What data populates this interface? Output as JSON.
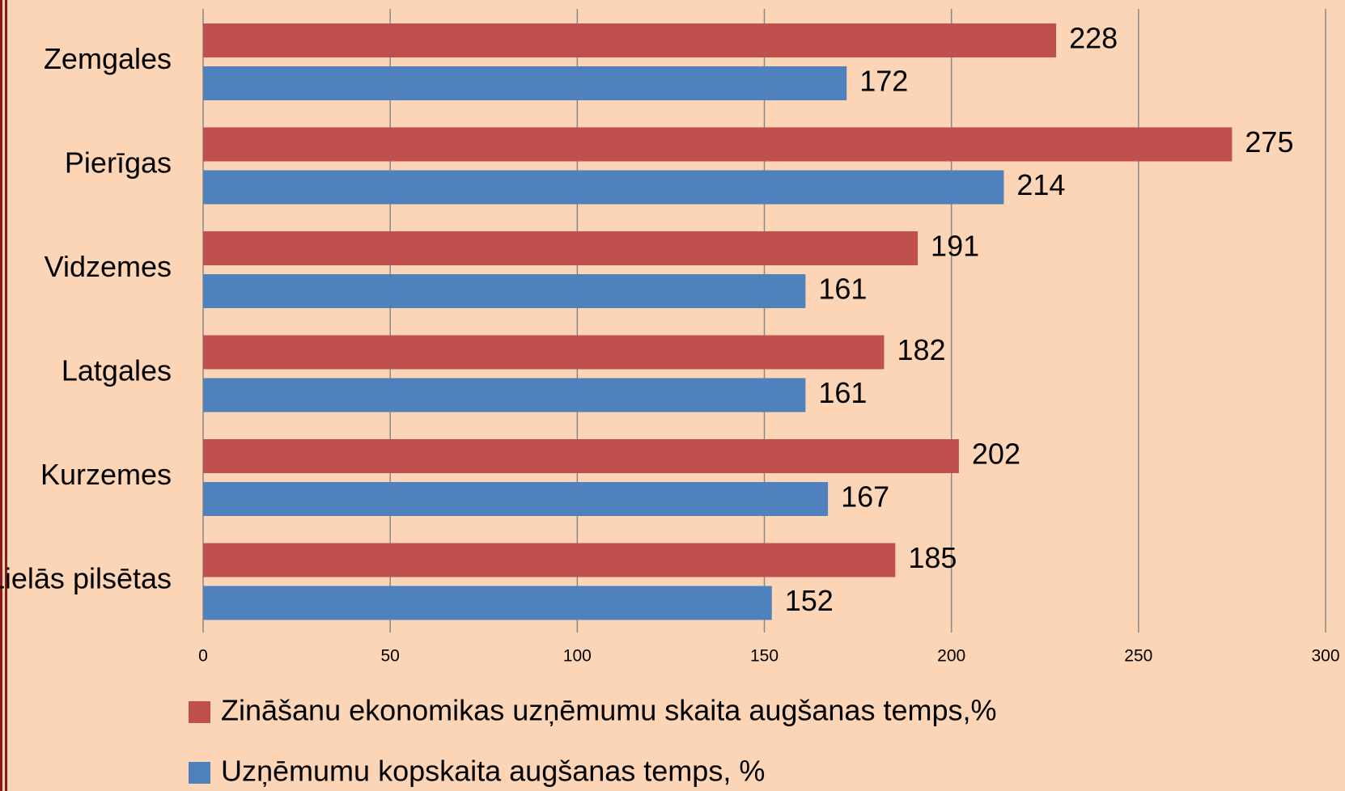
{
  "chart_data": {
    "type": "hbar",
    "categories": [
      "Zemgales",
      "Pierīgas",
      "Vidzemes",
      "Latgales",
      "Kurzemes",
      "Lielās pilsētas"
    ],
    "series": [
      {
        "name": "Zināšanu ekonomikas uzņēmumu skaita augšanas temps,%",
        "color": "#c0504d",
        "values": [
          228,
          275,
          191,
          182,
          202,
          185
        ]
      },
      {
        "name": "Uzņēmumu kopskaita augšanas temps, %",
        "color": "#4f81bd",
        "values": [
          172,
          214,
          161,
          161,
          167,
          152
        ]
      }
    ],
    "xlim": [
      0,
      300
    ],
    "xticks": [
      0,
      50,
      100,
      150,
      200,
      250,
      300
    ],
    "grid": true,
    "legend": "bottom"
  }
}
